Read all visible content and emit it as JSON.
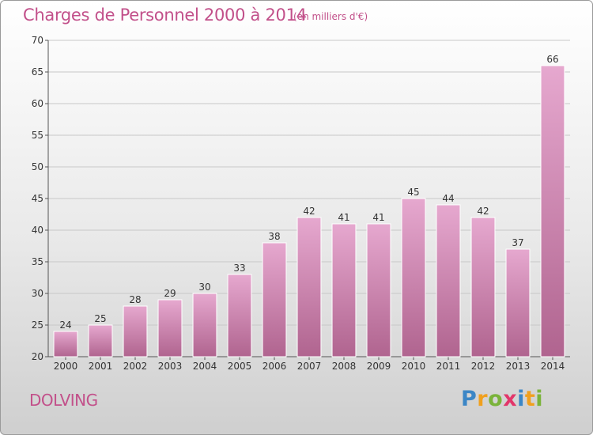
{
  "title": "Charges de Personnel 2000 à 2014",
  "subtitle": "(en milliers d'€)",
  "location": "DOLVING",
  "brand": {
    "letters": [
      "P",
      "r",
      "o",
      "x",
      "i",
      "t",
      "i"
    ],
    "colors": [
      "#3b86c6",
      "#f0a01e",
      "#7ab33a",
      "#e2366a",
      "#3b86c6",
      "#f0a01e",
      "#7ab33a"
    ]
  },
  "colors": {
    "bar_top": "#e6a8cf",
    "bar_bottom": "#b0648f",
    "title": "#c2508a",
    "grid": "#c8c8c8"
  },
  "chart_data": {
    "type": "bar",
    "categories": [
      "2000",
      "2001",
      "2002",
      "2003",
      "2004",
      "2005",
      "2006",
      "2007",
      "2008",
      "2009",
      "2010",
      "2011",
      "2012",
      "2013",
      "2014"
    ],
    "values": [
      24,
      25,
      28,
      29,
      30,
      33,
      38,
      42,
      41,
      41,
      45,
      44,
      42,
      37,
      66
    ],
    "ylim": [
      20,
      70
    ],
    "yticks": [
      20,
      25,
      30,
      35,
      40,
      45,
      50,
      55,
      60,
      65,
      70
    ],
    "grid": true,
    "data_labels": true
  }
}
